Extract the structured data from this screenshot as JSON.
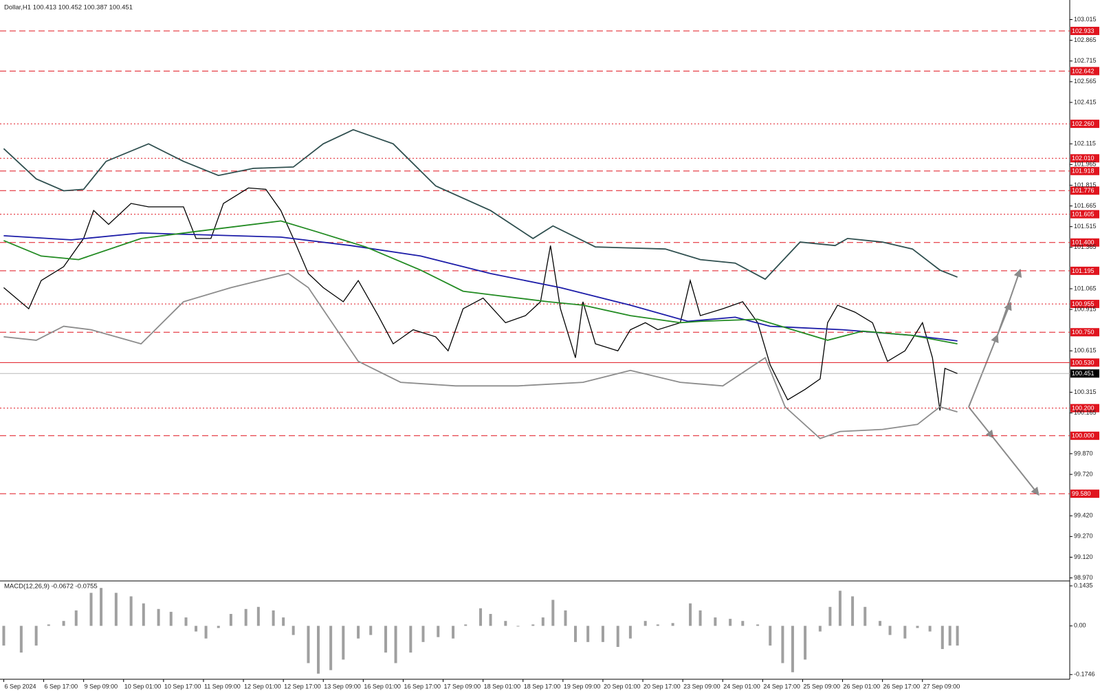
{
  "chart_data": [
    {
      "type": "line",
      "title": "Dollar,H1  100.413 100.452 100.387 100.451",
      "xlim": [
        -1.5,
        427
      ],
      "ylim": [
        98.958,
        103.157
      ],
      "yticks": [
        103.015,
        102.865,
        {
          "value": 102.715,
          "label": "102.715"
        },
        102.565,
        102.415,
        102.115,
        101.965,
        101.815,
        101.665,
        101.515,
        101.365,
        101.065,
        100.915,
        100.615,
        100.315,
        100.165,
        {
          "value": 99.87,
          "label": "99.870"
        },
        {
          "value": 99.72,
          "label": "99.720"
        },
        {
          "value": 99.42,
          "label": "99.420"
        },
        {
          "value": 99.27,
          "label": "99.270"
        },
        {
          "value": 99.12,
          "label": "99.120"
        },
        {
          "value": 98.97,
          "label": "98.970"
        }
      ],
      "levels": [
        {
          "value": 102.933,
          "style": "dashed"
        },
        {
          "value": 102.642,
          "style": "dashed"
        },
        {
          "value": 102.26,
          "label": "102.260",
          "style": "dotted"
        },
        {
          "value": 102.01,
          "label": "102.010",
          "style": "dotted"
        },
        {
          "value": 101.918,
          "style": "dashed"
        },
        {
          "value": 101.776,
          "style": "dashed"
        },
        {
          "value": 101.605,
          "style": "dotted"
        },
        {
          "value": 101.4,
          "label": "101.400",
          "style": "dashed"
        },
        {
          "value": 101.195,
          "style": "dashed"
        },
        {
          "value": 100.955,
          "style": "dotted"
        },
        {
          "value": 100.75,
          "label": "100.750",
          "style": "dashed"
        },
        {
          "value": 100.53,
          "label": "100.530",
          "style": "solid"
        },
        {
          "value": 100.2,
          "label": "100.200",
          "style": "dotted"
        },
        {
          "value": 100.0,
          "label": "100.000",
          "style": "dashed"
        },
        {
          "value": 99.58,
          "label": "99.580",
          "style": "dashed"
        }
      ],
      "level_color": "#e0141e",
      "current_price": 100.451,
      "series": [
        {
          "color": "#000000",
          "x": [
            0,
            10,
            15,
            24,
            32,
            36,
            42,
            51,
            58,
            65,
            72,
            77,
            83,
            88,
            98,
            105,
            111,
            116,
            122,
            128,
            136,
            142,
            150,
            156,
            164,
            173,
            178,
            184,
            192,
            201,
            209,
            215,
            219,
            223,
            229,
            232,
            237,
            246,
            251,
            257,
            262,
            271,
            275,
            279,
            288,
            296,
            302,
            307,
            314,
            321,
            327,
            330,
            334,
            341,
            348,
            354,
            361,
            368,
            372,
            375,
            377,
            382
          ],
          "values": [
            101.073,
            100.92,
            101.124,
            101.225,
            101.429,
            101.632,
            101.531,
            101.683,
            101.658,
            101.658,
            101.658,
            101.429,
            101.429,
            101.683,
            101.795,
            101.785,
            101.632,
            101.429,
            101.175,
            101.073,
            100.971,
            101.124,
            100.87,
            100.666,
            100.768,
            100.717,
            100.615,
            100.92,
            100.997,
            100.819,
            100.87,
            100.971,
            101.378,
            100.92,
            100.565,
            100.971,
            100.666,
            100.615,
            100.768,
            100.819,
            100.768,
            100.819,
            101.124,
            100.87,
            100.92,
            100.971,
            100.819,
            100.514,
            100.26,
            100.336,
            100.412,
            100.819,
            100.946,
            100.895,
            100.819,
            100.539,
            100.615,
            100.819,
            100.565,
            100.183,
            100.488,
            100.451
          ]
        },
        {
          "color": "#2f4f4f",
          "x": [
            0,
            13,
            24,
            32,
            41,
            58,
            72,
            86,
            100,
            116,
            128,
            140,
            156,
            173,
            195,
            212,
            220,
            237,
            265,
            279,
            293,
            305,
            319,
            333,
            338,
            352,
            364,
            375,
            382
          ],
          "values": [
            102.08,
            101.861,
            101.775,
            101.785,
            101.988,
            102.115,
            101.988,
            101.886,
            101.937,
            101.947,
            102.115,
            102.217,
            102.115,
            101.81,
            101.632,
            101.429,
            101.52,
            101.368,
            101.353,
            101.276,
            101.251,
            101.134,
            101.403,
            101.378,
            101.429,
            101.403,
            101.353,
            101.2,
            101.149
          ]
        },
        {
          "color": "#8c8c8c",
          "x": [
            0,
            13,
            24,
            35,
            55,
            72,
            91,
            114,
            122,
            142,
            159,
            181,
            206,
            232,
            251,
            271,
            288,
            305,
            313,
            327,
            335,
            352,
            366,
            375,
            382
          ],
          "values": [
            100.717,
            100.692,
            100.793,
            100.768,
            100.666,
            100.971,
            101.073,
            101.175,
            101.073,
            100.539,
            100.387,
            100.361,
            100.361,
            100.387,
            100.473,
            100.387,
            100.361,
            100.565,
            100.209,
            99.98,
            100.031,
            100.046,
            100.082,
            100.209,
            100.173
          ]
        },
        {
          "color": "#1c1ca8",
          "x": [
            0,
            27,
            55,
            83,
            111,
            139,
            167,
            195,
            223,
            251,
            274,
            293,
            307,
            336,
            364,
            382
          ],
          "values": [
            101.449,
            101.419,
            101.469,
            101.454,
            101.439,
            101.378,
            101.302,
            101.175,
            101.073,
            100.946,
            100.829,
            100.859,
            100.793,
            100.768,
            100.727,
            100.687
          ]
        },
        {
          "color": "#228b22",
          "x": [
            0,
            15,
            30,
            55,
            77,
            111,
            125,
            145,
            167,
            184,
            195,
            218,
            232,
            251,
            271,
            279,
            302,
            316,
            330,
            344,
            364,
            382
          ],
          "values": [
            101.414,
            101.302,
            101.276,
            101.429,
            101.48,
            101.556,
            101.48,
            101.368,
            101.2,
            101.047,
            101.022,
            100.971,
            100.946,
            100.87,
            100.819,
            100.829,
            100.844,
            100.768,
            100.692,
            100.758,
            100.727,
            100.666
          ]
        }
      ]
    },
    {
      "type": "bar",
      "title": "MACD(12,26,9) -0.0672 -0.0755",
      "xlim": [
        -1.5,
        427
      ],
      "ylim": [
        -0.1914,
        0.1586
      ],
      "yticks": [
        0.1435,
        {
          "value": 0,
          "label": "0.00"
        },
        -0.1746
      ],
      "color": "#a0a0a0",
      "xticks": [
        {
          "value": 0,
          "label": "6 Sep 2024"
        },
        {
          "value": 16,
          "label": "6 Sep 17:00"
        },
        {
          "value": 32,
          "label": "9 Sep 09:00"
        },
        {
          "value": 48,
          "label": "10 Sep 01:00"
        },
        {
          "value": 64,
          "label": "10 Sep 17:00"
        },
        {
          "value": 80,
          "label": "11 Sep 09:00"
        },
        {
          "value": 96,
          "label": "12 Sep 01:00"
        },
        {
          "value": 112,
          "label": "12 Sep 17:00"
        },
        {
          "value": 128,
          "label": "13 Sep 09:00"
        },
        {
          "value": 144,
          "label": "16 Sep 01:00"
        },
        {
          "value": 160,
          "label": "16 Sep 17:00"
        },
        {
          "value": 176,
          "label": "17 Sep 09:00"
        },
        {
          "value": 192,
          "label": "18 Sep 01:00"
        },
        {
          "value": 208,
          "label": "18 Sep 17:00"
        },
        {
          "value": 224,
          "label": "19 Sep 09:00"
        },
        {
          "value": 240,
          "label": "20 Sep 01:00"
        },
        {
          "value": 256,
          "label": "20 Sep 17:00"
        },
        {
          "value": 272,
          "label": "23 Sep 09:00"
        },
        {
          "value": 288,
          "label": "24 Sep 01:00"
        },
        {
          "value": 304,
          "label": "24 Sep 17:00"
        },
        {
          "value": 320,
          "label": "25 Sep 09:00"
        },
        {
          "value": 336,
          "label": "26 Sep 01:00"
        },
        {
          "value": 352,
          "label": "26 Sep 17:00"
        },
        {
          "value": 368,
          "label": "27 Sep 09:00"
        }
      ],
      "x": [
        0,
        7,
        13,
        18,
        24,
        29,
        35,
        39,
        45,
        51,
        56,
        62,
        67,
        73,
        77,
        81,
        86,
        91,
        97,
        102,
        108,
        112,
        116,
        122,
        126,
        131,
        136,
        142,
        147,
        153,
        157,
        163,
        168,
        174,
        180,
        185,
        191,
        195,
        201,
        206,
        212,
        216,
        220,
        225,
        229,
        234,
        240,
        246,
        251,
        257,
        262,
        268,
        275,
        279,
        285,
        291,
        296,
        302,
        307,
        312,
        316,
        321,
        327,
        331,
        335,
        340,
        345,
        351,
        355,
        361,
        366,
        371,
        376,
        379,
        382
      ],
      "values": [
        -0.0705,
        -0.0957,
        -0.0705,
        0.005,
        0.0176,
        0.0554,
        0.1184,
        0.136,
        0.1184,
        0.1058,
        0.0806,
        0.0605,
        0.0504,
        0.0302,
        -0.0202,
        -0.0453,
        -0.0076,
        0.0428,
        0.0605,
        0.068,
        0.0554,
        0.0302,
        -0.0327,
        -0.1335,
        -0.1713,
        -0.1587,
        -0.1209,
        -0.0453,
        -0.0327,
        -0.0957,
        -0.1335,
        -0.0957,
        -0.0579,
        -0.0403,
        -0.0453,
        0.005,
        0.063,
        0.0428,
        0.0176,
        -0.0025,
        0.005,
        0.0302,
        0.0932,
        0.0554,
        -0.0579,
        -0.0579,
        -0.0579,
        -0.0756,
        -0.0453,
        0.0176,
        0.005,
        0.0101,
        0.0806,
        0.0554,
        0.0302,
        0.0252,
        0.0176,
        0.005,
        -0.0705,
        -0.1335,
        -0.1662,
        -0.1209,
        -0.0202,
        0.068,
        0.1259,
        0.1058,
        0.068,
        0.0176,
        -0.0327,
        -0.0453,
        -0.0076,
        -0.0202,
        -0.0831,
        -0.0705,
        -0.0705
      ]
    }
  ]
}
